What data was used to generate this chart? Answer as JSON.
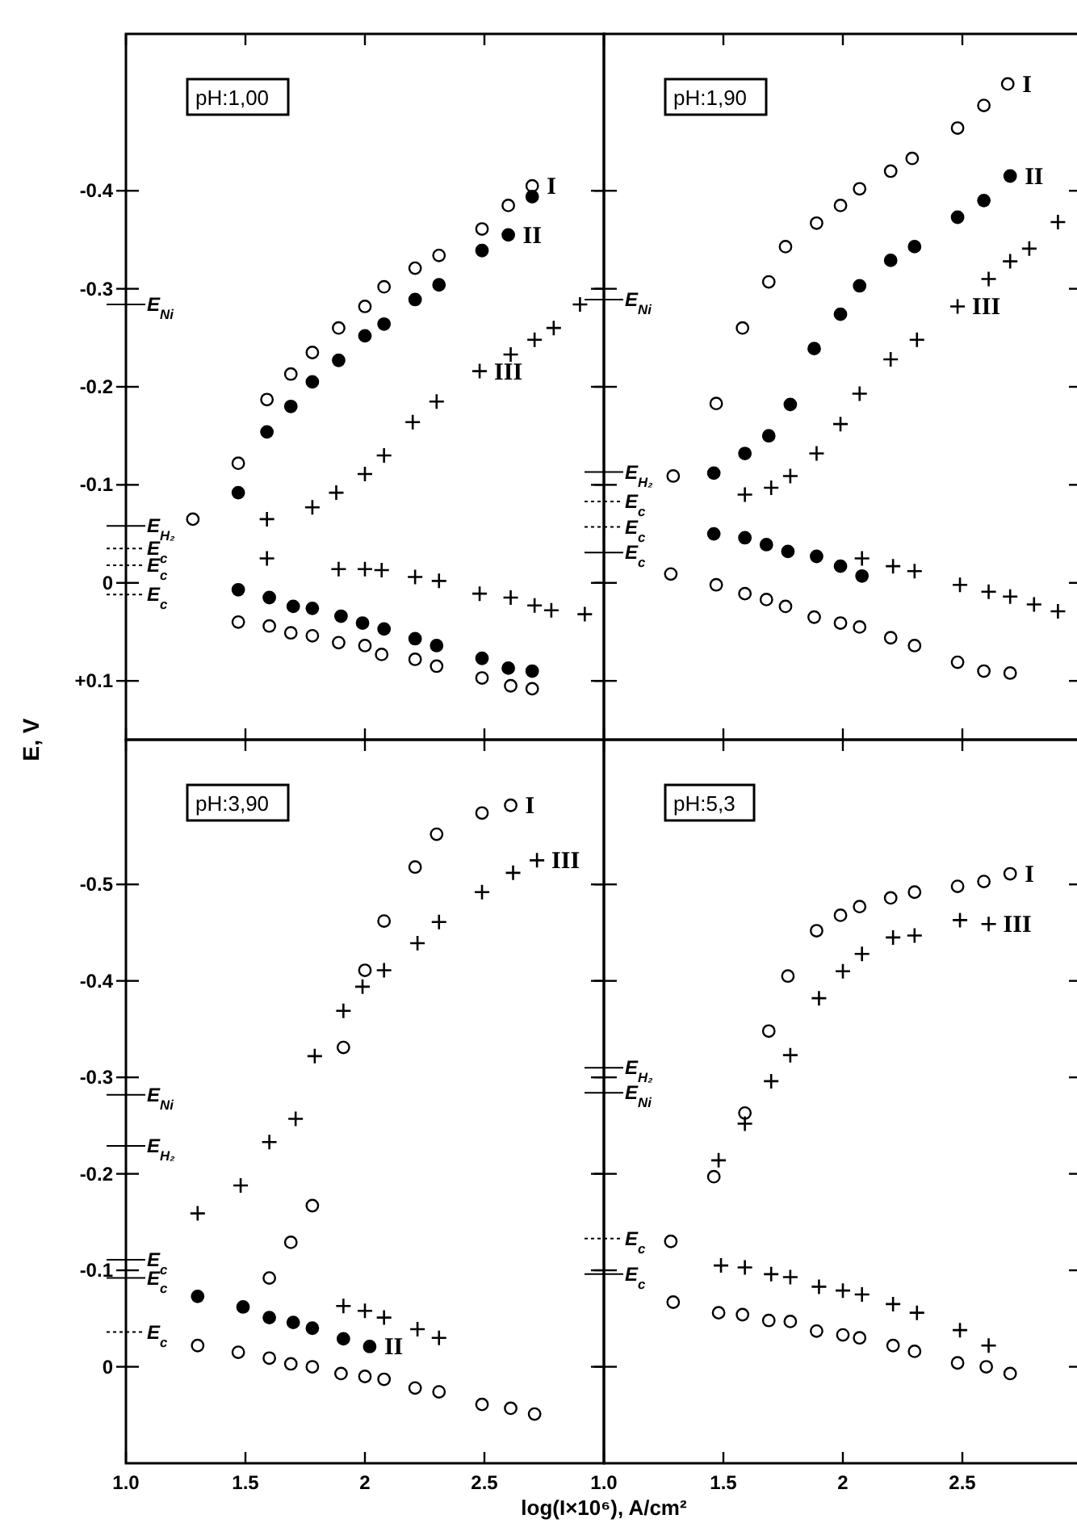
{
  "chart_data": [
    {
      "type": "scatter",
      "title": "pH:1,00",
      "ylabel": "E, V",
      "xlim": [
        1,
        3
      ],
      "xticks": [
        {
          "value": 1,
          "label": null
        },
        {
          "value": 1.5,
          "label": null
        },
        {
          "value": 2,
          "label": null
        },
        {
          "value": 2.5,
          "label": null
        }
      ],
      "ylim": [
        0.16,
        -0.56
      ],
      "yticks": [
        -0.4,
        -0.3,
        -0.2,
        -0.1,
        0,
        {
          "value": 0.1,
          "label": "+0.1"
        }
      ],
      "tick_labels": "y",
      "series": [
        {
          "name": "I",
          "marker": "circle",
          "color": "#ffffff",
          "x": [
            1.28,
            1.47,
            1.59,
            1.69,
            1.78,
            1.89,
            2.0,
            2.08,
            2.21,
            2.31,
            2.49,
            2.6,
            1.47,
            1.6,
            1.69,
            1.78,
            1.89,
            2.0,
            2.07,
            2.21,
            2.3,
            2.49,
            2.61,
            2.7,
            2.7
          ],
          "values": [
            -0.065,
            -0.122,
            -0.187,
            -0.213,
            -0.235,
            -0.26,
            -0.282,
            -0.302,
            -0.321,
            -0.334,
            -0.361,
            -0.385,
            0.04,
            0.044,
            0.051,
            0.054,
            0.061,
            0.064,
            0.073,
            0.078,
            0.085,
            0.097,
            0.105,
            0.108,
            -0.405
          ]
        },
        {
          "name": "II",
          "marker": "circle",
          "color": "#000000",
          "x": [
            1.47,
            1.59,
            1.69,
            1.78,
            1.89,
            2.0,
            2.08,
            2.21,
            2.31,
            2.49,
            2.7,
            1.47,
            1.6,
            1.7,
            1.78,
            1.9,
            1.99,
            2.08,
            2.21,
            2.3,
            2.49,
            2.6,
            2.7,
            2.6
          ],
          "values": [
            -0.092,
            -0.154,
            -0.18,
            -0.205,
            -0.227,
            -0.252,
            -0.264,
            -0.289,
            -0.304,
            -0.339,
            -0.394,
            0.007,
            0.015,
            0.024,
            0.026,
            0.034,
            0.041,
            0.047,
            0.057,
            0.064,
            0.077,
            0.087,
            0.09,
            -0.355
          ]
        },
        {
          "name": "III",
          "marker": "cross",
          "color": "#000000",
          "x": [
            1.59,
            1.78,
            1.88,
            2.0,
            2.08,
            2.2,
            2.3,
            2.61,
            2.71,
            2.79,
            2.9,
            1.59,
            1.89,
            2.0,
            2.07,
            2.21,
            2.31,
            2.48,
            2.61,
            2.71,
            2.78,
            2.92,
            2.48
          ],
          "values": [
            -0.065,
            -0.077,
            -0.092,
            -0.111,
            -0.13,
            -0.164,
            -0.185,
            -0.233,
            -0.248,
            -0.26,
            -0.284,
            -0.025,
            -0.014,
            -0.014,
            -0.013,
            -0.006,
            -0.002,
            0.011,
            0.015,
            0.023,
            0.028,
            0.032,
            -0.216
          ]
        }
      ],
      "ref_lines": [
        {
          "axis": "y",
          "value": -0.284,
          "label": "E$_{Ni}$",
          "line_style": "solid"
        },
        {
          "axis": "y",
          "value": -0.058,
          "label": "E$_{H₂}$",
          "line_style": "solid"
        },
        {
          "axis": "y",
          "value": -0.035,
          "label": "E$_{c}$",
          "line_style": "dashed"
        },
        {
          "axis": "y",
          "value": -0.018,
          "label": "E$_{c}$",
          "line_style": "dashed"
        },
        {
          "axis": "y",
          "value": 0.012,
          "label": "E$_{c}$",
          "line_style": "dashed"
        }
      ]
    },
    {
      "type": "scatter",
      "title": "pH:1,90",
      "xlim": [
        1,
        3
      ],
      "xticks": [
        {
          "value": 1,
          "label": null
        },
        {
          "value": 1.5,
          "label": null
        },
        {
          "value": 2,
          "label": null
        },
        {
          "value": 2.5,
          "label": null
        }
      ],
      "ylim": [
        0.16,
        -0.56
      ],
      "yticks": [
        {
          "value": -0.4,
          "label": null
        },
        {
          "value": -0.3,
          "label": null
        },
        {
          "value": -0.2,
          "label": null
        },
        {
          "value": -0.1,
          "label": null
        },
        {
          "value": 0,
          "label": null
        },
        {
          "value": 0.1,
          "label": null
        }
      ],
      "tick_labels": false,
      "series": [
        {
          "name": "I",
          "marker": "circle",
          "color": "#ffffff",
          "x": [
            1.29,
            1.47,
            1.58,
            1.69,
            1.76,
            1.89,
            1.99,
            2.07,
            2.2,
            2.29,
            2.48,
            2.59,
            1.28,
            1.47,
            1.59,
            1.68,
            1.76,
            1.88,
            1.99,
            2.07,
            2.2,
            2.3,
            2.48,
            2.59,
            2.7,
            2.69
          ],
          "values": [
            -0.109,
            -0.183,
            -0.26,
            -0.307,
            -0.343,
            -0.367,
            -0.385,
            -0.402,
            -0.42,
            -0.433,
            -0.464,
            -0.487,
            -0.009,
            0.002,
            0.011,
            0.017,
            0.024,
            0.035,
            0.041,
            0.045,
            0.056,
            0.064,
            0.081,
            0.09,
            0.092,
            -0.509
          ]
        },
        {
          "name": "II",
          "marker": "circle",
          "color": "#000000",
          "x": [
            1.46,
            1.59,
            1.69,
            1.78,
            1.88,
            1.99,
            2.07,
            2.2,
            2.3,
            2.48,
            2.59,
            1.46,
            1.59,
            1.68,
            1.77,
            1.89,
            1.99,
            2.08,
            2.7
          ],
          "values": [
            -0.112,
            -0.132,
            -0.15,
            -0.182,
            -0.239,
            -0.274,
            -0.303,
            -0.329,
            -0.343,
            -0.373,
            -0.39,
            -0.05,
            -0.046,
            -0.039,
            -0.032,
            -0.027,
            -0.017,
            -0.007,
            -0.415
          ]
        },
        {
          "name": "III",
          "marker": "cross",
          "color": "#000000",
          "x": [
            1.59,
            1.7,
            1.78,
            1.89,
            1.99,
            2.07,
            2.2,
            2.31,
            2.61,
            2.7,
            2.78,
            2.9,
            2.08,
            2.21,
            2.3,
            2.49,
            2.61,
            2.7,
            2.8,
            2.9,
            2.48
          ],
          "values": [
            -0.09,
            -0.097,
            -0.109,
            -0.132,
            -0.162,
            -0.193,
            -0.228,
            -0.248,
            -0.31,
            -0.328,
            -0.341,
            -0.368,
            -0.025,
            -0.017,
            -0.012,
            0.002,
            0.009,
            0.014,
            0.022,
            0.029,
            -0.282
          ]
        }
      ],
      "ref_lines": [
        {
          "axis": "y",
          "value": -0.289,
          "label": "E$_{Ni}$",
          "line_style": "solid"
        },
        {
          "axis": "y",
          "value": -0.113,
          "label": "E$_{H₂}$",
          "line_style": "solid"
        },
        {
          "axis": "y",
          "value": -0.083,
          "label": "E$_{c}$",
          "line_style": "dashed"
        },
        {
          "axis": "y",
          "value": -0.057,
          "label": "E$_{c}$",
          "line_style": "dashed"
        },
        {
          "axis": "y",
          "value": -0.031,
          "label": "E$_{c}$",
          "line_style": "solid"
        }
      ]
    },
    {
      "type": "scatter",
      "title": "pH:3,90",
      "xlabel": "log(I×10⁶),  A/cm²",
      "xlim": [
        1,
        3
      ],
      "xticks": [
        {
          "value": 1,
          "label": "1.0"
        },
        1.5,
        2,
        2.5
      ],
      "ylim": [
        0.1,
        -0.65
      ],
      "yticks": [
        -0.5,
        -0.4,
        -0.3,
        -0.2,
        -0.1,
        0
      ],
      "series": [
        {
          "name": "I",
          "marker": "circle",
          "color": "#ffffff",
          "x": [
            1.6,
            1.69,
            1.78,
            1.91,
            2.0,
            2.08,
            2.21,
            2.3,
            2.49,
            1.3,
            1.47,
            1.6,
            1.69,
            1.78,
            1.9,
            2.0,
            2.08,
            2.21,
            2.31,
            2.49,
            2.61,
            2.71,
            2.61
          ],
          "values": [
            -0.092,
            -0.129,
            -0.167,
            -0.331,
            -0.411,
            -0.462,
            -0.518,
            -0.552,
            -0.574,
            -0.022,
            -0.015,
            -0.009,
            -0.003,
            0,
            0.007,
            0.01,
            0.013,
            0.022,
            0.026,
            0.039,
            0.043,
            0.049,
            -0.582
          ]
        },
        {
          "name": "II",
          "marker": "circle",
          "color": "#000000",
          "x": [
            1.3,
            1.49,
            1.6,
            1.7,
            1.78,
            1.91,
            2.02
          ],
          "values": [
            -0.073,
            -0.062,
            -0.051,
            -0.046,
            -0.04,
            -0.029,
            -0.021
          ]
        },
        {
          "name": "III",
          "marker": "cross",
          "color": "#000000",
          "x": [
            1.3,
            1.48,
            1.6,
            1.71,
            1.79,
            1.91,
            1.99,
            2.08,
            2.22,
            2.31,
            2.49,
            2.62,
            1.91,
            2.0,
            2.08,
            2.22,
            2.31,
            2.72
          ],
          "values": [
            -0.159,
            -0.188,
            -0.233,
            -0.257,
            -0.322,
            -0.369,
            -0.394,
            -0.411,
            -0.439,
            -0.461,
            -0.492,
            -0.512,
            -0.063,
            -0.058,
            -0.051,
            -0.039,
            -0.03,
            -0.525
          ]
        }
      ],
      "ref_lines": [
        {
          "axis": "y",
          "value": -0.282,
          "label": "E$_{Ni}$",
          "line_style": "solid"
        },
        {
          "axis": "y",
          "value": -0.229,
          "label": "E$_{H₂}$",
          "line_style": "solid"
        },
        {
          "axis": "y",
          "value": -0.111,
          "label": "E$_{c}$",
          "line_style": "solid"
        },
        {
          "axis": "y",
          "value": -0.092,
          "label": "E$_{c}$",
          "line_style": "solid"
        },
        {
          "axis": "y",
          "value": -0.036,
          "label": "E$_{c}$",
          "line_style": "dashed"
        }
      ]
    },
    {
      "type": "scatter",
      "title": "pH:5,3",
      "xlim": [
        1,
        3
      ],
      "xticks": [
        {
          "value": 1,
          "label": "1.0"
        },
        1.5,
        2,
        2.5
      ],
      "ylim": [
        0.1,
        -0.65
      ],
      "yticks": [
        {
          "value": -0.5,
          "label": null
        },
        {
          "value": -0.4,
          "label": null
        },
        {
          "value": -0.3,
          "label": null
        },
        {
          "value": -0.2,
          "label": null
        },
        {
          "value": -0.1,
          "label": null
        },
        {
          "value": 0,
          "label": null
        }
      ],
      "tick_labels": "x",
      "series": [
        {
          "name": "I",
          "marker": "circle",
          "color": "#ffffff",
          "x": [
            1.46,
            1.59,
            1.69,
            1.77,
            1.89,
            1.99,
            2.07,
            2.2,
            2.3,
            2.48,
            2.59,
            1.28,
            1.29,
            1.48,
            1.58,
            1.69,
            1.78,
            1.89,
            2.0,
            2.07,
            2.21,
            2.3,
            2.48,
            2.6,
            2.7,
            2.7
          ],
          "values": [
            -0.197,
            -0.263,
            -0.348,
            -0.405,
            -0.452,
            -0.468,
            -0.477,
            -0.486,
            -0.492,
            -0.498,
            -0.503,
            -0.13,
            -0.067,
            -0.056,
            -0.054,
            -0.048,
            -0.047,
            -0.037,
            -0.033,
            -0.03,
            -0.022,
            -0.016,
            -0.004,
            0,
            0.007,
            -0.511
          ]
        },
        {
          "name": "III",
          "marker": "cross",
          "color": "#000000",
          "x": [
            1.48,
            1.59,
            1.7,
            1.78,
            1.9,
            2.0,
            2.08,
            2.21,
            2.3,
            2.49,
            1.49,
            1.59,
            1.7,
            1.78,
            1.9,
            2.0,
            2.08,
            2.21,
            2.31,
            2.49,
            2.61,
            2.61
          ],
          "values": [
            -0.214,
            -0.252,
            -0.296,
            -0.323,
            -0.382,
            -0.41,
            -0.428,
            -0.445,
            -0.447,
            -0.463,
            -0.105,
            -0.103,
            -0.096,
            -0.093,
            -0.083,
            -0.079,
            -0.075,
            -0.065,
            -0.056,
            -0.038,
            -0.022,
            -0.459
          ]
        }
      ],
      "ref_lines": [
        {
          "axis": "y",
          "value": -0.31,
          "label": "E$_{H₂}$",
          "line_style": "solid"
        },
        {
          "axis": "y",
          "value": -0.284,
          "label": "E$_{Ni}$",
          "line_style": "solid"
        },
        {
          "axis": "y",
          "value": -0.133,
          "label": "E$_{c}$",
          "line_style": "dashed"
        },
        {
          "axis": "y",
          "value": -0.096,
          "label": "E$_{c}$",
          "line_style": "solid"
        }
      ]
    }
  ]
}
